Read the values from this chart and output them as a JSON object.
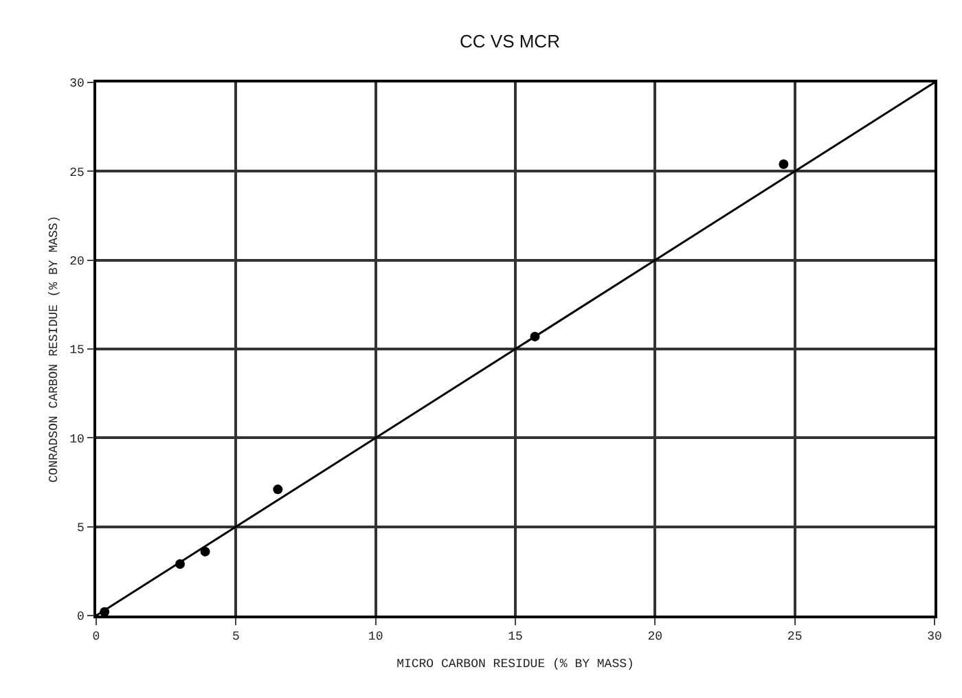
{
  "chart_data": {
    "type": "scatter",
    "title": "CC VS MCR",
    "xlabel": "MICRO CARBON RESIDUE (% BY MASS)",
    "ylabel": "CONRADSON CARBON RESIDUE (% BY MASS)",
    "xlim": [
      0,
      30
    ],
    "xticks": [
      0,
      5,
      10,
      15,
      20,
      25,
      30
    ],
    "ylim": [
      0,
      30
    ],
    "yticks": [
      0,
      5,
      10,
      15,
      20,
      25,
      30
    ],
    "grid": true,
    "marker": "circle",
    "series": [
      {
        "type": "scatter",
        "color": "#000000",
        "x": [
          0.3,
          3.0,
          3.9,
          6.5,
          15.7,
          24.6
        ],
        "values": [
          0.2,
          2.9,
          3.6,
          7.1,
          15.7,
          25.4
        ]
      },
      {
        "type": "line",
        "color": "#000000",
        "x": [
          0,
          30
        ],
        "values": [
          0,
          30
        ],
        "marker": "none",
        "line_style": "solid"
      }
    ]
  }
}
